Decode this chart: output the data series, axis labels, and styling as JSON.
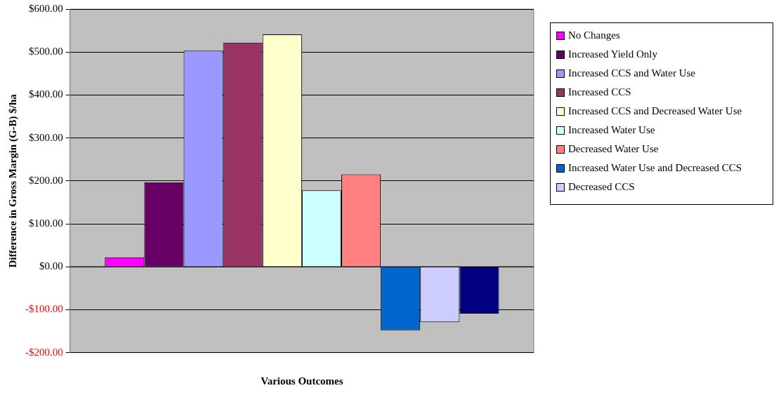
{
  "chart_data": {
    "type": "bar",
    "xlabel": "Various Outcomes",
    "ylabel": "Difference in Gross Margin (G-B) $/ha",
    "categories": [
      null
    ],
    "series": [
      {
        "name": "No Changes",
        "color": "#ff00ff",
        "values": [
          22
        ]
      },
      {
        "name": "Increased Yield Only",
        "color": "#660066",
        "values": [
          197
        ]
      },
      {
        "name": "Increased CCS and Water Use",
        "color": "#9999ff",
        "values": [
          503
        ]
      },
      {
        "name": "Increased CCS",
        "color": "#993366",
        "values": [
          522
        ]
      },
      {
        "name": "Increased CCS and Decreased Water Use",
        "color": "#ffffcc",
        "values": [
          541
        ]
      },
      {
        "name": "Increased Water Use",
        "color": "#ccffff",
        "values": [
          178
        ]
      },
      {
        "name": "Decreased Water Use",
        "color": "#ff8080",
        "values": [
          215
        ]
      },
      {
        "name": "Increased Water Use and Decreased CCS",
        "color": "#0066cc",
        "values": [
          -148
        ]
      },
      {
        "name": "Decreased CCS",
        "color": "#ccccff",
        "values": [
          -129
        ]
      },
      {
        "color": "#000080",
        "values": [
          -109
        ]
      }
    ],
    "ylim": [
      -200,
      600
    ],
    "yticks": [
      {
        "value": -200,
        "label": "-$200.00"
      },
      {
        "value": -100,
        "label": "-$100.00"
      },
      {
        "value": 0,
        "label": "$0.00"
      },
      {
        "value": 100,
        "label": "$100.00"
      },
      {
        "value": 200,
        "label": "$200.00"
      },
      {
        "value": 300,
        "label": "$300.00"
      },
      {
        "value": 400,
        "label": "$400.00"
      },
      {
        "value": 500,
        "label": "$500.00"
      },
      {
        "value": 600,
        "label": "$600.00"
      }
    ],
    "grid": "y",
    "legend": "right"
  }
}
